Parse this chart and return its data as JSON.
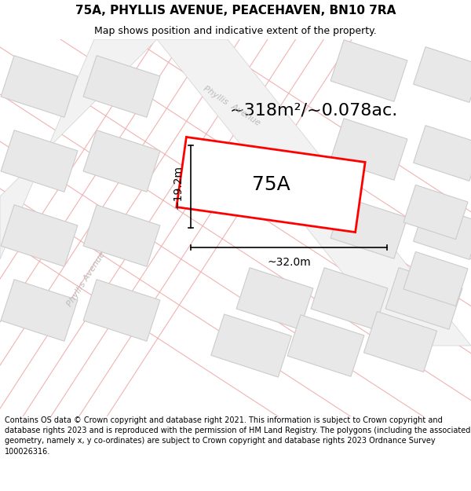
{
  "title": "75A, PHYLLIS AVENUE, PEACEHAVEN, BN10 7RA",
  "subtitle": "Map shows position and indicative extent of the property.",
  "footer": "Contains OS data © Crown copyright and database right 2021. This information is subject to Crown copyright and database rights 2023 and is reproduced with the permission of HM Land Registry. The polygons (including the associated geometry, namely x, y co-ordinates) are subject to Crown copyright and database rights 2023 Ordnance Survey 100026316.",
  "area_text": "~318m²/~0.078ac.",
  "label_75A": "75A",
  "dim_width": "~32.0m",
  "dim_height": "~19.2m",
  "bg_color": "#ffffff",
  "map_bg": "#f8f8f8",
  "building_fill": "#e8e8e8",
  "building_outline": "#cccccc",
  "road_line_color": "#f0aaaa",
  "road_fill": "#f5f5f5",
  "road_edge": "#d0d0d0",
  "highlight_color": "#ff0000",
  "highlight_fill": "#ffffff",
  "text_color": "#000000",
  "street_label_color": "#bbbbbb",
  "title_fontsize": 11,
  "subtitle_fontsize": 9,
  "footer_fontsize": 7,
  "area_fontsize": 16,
  "label_fontsize": 18,
  "dim_fontsize": 10
}
